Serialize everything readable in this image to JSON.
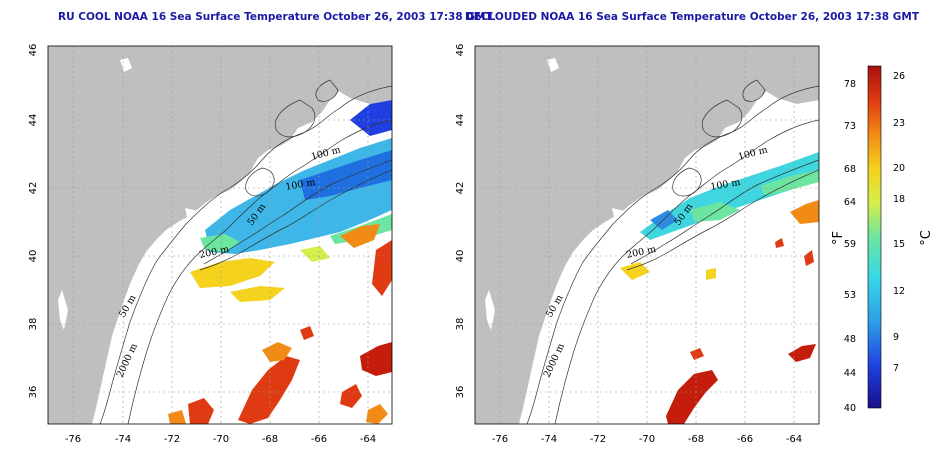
{
  "left_panel": {
    "title": "RU COOL NOAA 16 Sea Surface Temperature October 26, 2003 17:38 GMT",
    "contour_labels": [
      "100 m",
      "100 m",
      "50 m",
      "200 m",
      "50 m",
      "2000 m"
    ]
  },
  "right_panel": {
    "title": "DECLOUDED NOAA 16 Sea Surface Temperature October 26, 2003 17:38 GMT",
    "contour_labels": [
      "100 m",
      "100 m",
      "50 m",
      "200 m",
      "50 m",
      "2000 m"
    ]
  },
  "axes": {
    "lon_ticks": [
      "-76",
      "-74",
      "-72",
      "-70",
      "-68",
      "-66",
      "-64"
    ],
    "lat_ticks": [
      "46",
      "44",
      "42",
      "40",
      "38",
      "36"
    ]
  },
  "colorbar": {
    "fahrenheit_ticks": [
      "78",
      "73",
      "68",
      "64",
      "59",
      "53",
      "48",
      "44",
      "40"
    ],
    "celsius_ticks": [
      "26",
      "23",
      "20",
      "18",
      "15",
      "12",
      "9",
      "7"
    ],
    "f_unit": "°F",
    "c_unit": "°C"
  },
  "colors": {
    "land": "#bfbfbf",
    "ocean": "#ffffff",
    "title": "#1a1aa6"
  }
}
